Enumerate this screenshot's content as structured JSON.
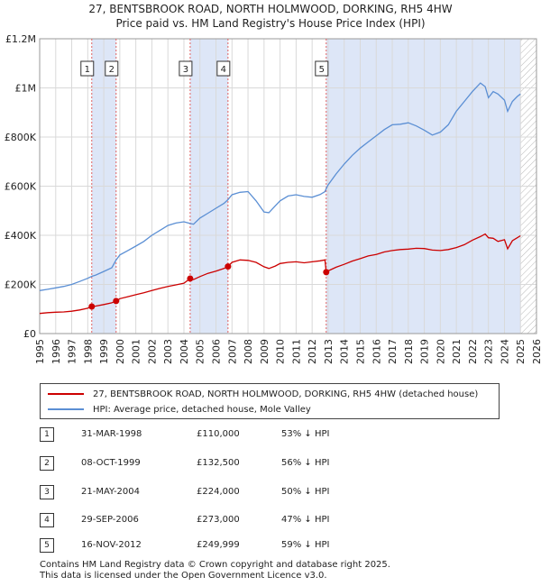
{
  "title_line1": "27, BENTSBROOK ROAD, NORTH HOLMWOOD, DORKING, RH5 4HW",
  "title_line2": "Price paid vs. HM Land Registry's House Price Index (HPI)",
  "colors": {
    "property": "#cc0000",
    "hpi": "#5b8fd4",
    "shade": "#dde6f7",
    "grid": "#d9d9d9"
  },
  "chart_data": {
    "type": "line",
    "xlim": [
      1995,
      2026
    ],
    "ylim": [
      0,
      1200000
    ],
    "yticks": [
      0,
      200000,
      400000,
      600000,
      800000,
      1000000,
      1200000
    ],
    "ytick_labels": [
      "£0",
      "£200K",
      "£400K",
      "£600K",
      "£800K",
      "£1M",
      "£1.2M"
    ],
    "xticks": [
      1995,
      1996,
      1997,
      1998,
      1999,
      2000,
      2001,
      2002,
      2003,
      2004,
      2005,
      2006,
      2007,
      2008,
      2009,
      2010,
      2011,
      2012,
      2013,
      2014,
      2015,
      2016,
      2017,
      2018,
      2019,
      2020,
      2021,
      2022,
      2023,
      2024,
      2025,
      2026
    ],
    "shaded_ranges": [
      [
        1998.25,
        1999.77
      ],
      [
        2004.39,
        2006.75
      ],
      [
        2012.88,
        2025.0
      ]
    ],
    "hatch_from": 2025.0,
    "series": [
      {
        "name": "27, BENTSBROOK ROAD, NORTH HOLMWOOD, DORKING, RH5 4HW (detached house)",
        "color": "#cc0000",
        "x": [
          1995,
          1995.5,
          1996,
          1996.5,
          1997,
          1997.5,
          1998,
          1998.25,
          1998.5,
          1999,
          1999.5,
          1999.77,
          2000,
          2000.5,
          2001,
          2001.5,
          2002,
          2002.5,
          2003,
          2003.5,
          2004,
          2004.39,
          2004.6,
          2005,
          2005.5,
          2006,
          2006.5,
          2006.75,
          2007,
          2007.5,
          2008,
          2008.5,
          2009,
          2009.3,
          2009.7,
          2010,
          2010.5,
          2011,
          2011.5,
          2012,
          2012.5,
          2012.8,
          2012.88,
          2013,
          2013.5,
          2014,
          2014.5,
          2015,
          2015.5,
          2016,
          2016.5,
          2017,
          2017.5,
          2018,
          2018.5,
          2019,
          2019.5,
          2020,
          2020.5,
          2021,
          2021.5,
          2022,
          2022.5,
          2022.8,
          2023,
          2023.3,
          2023.6,
          2024,
          2024.2,
          2024.5,
          2024.8,
          2025
        ],
        "values": [
          82000,
          85000,
          87000,
          88000,
          91000,
          96000,
          103000,
          110000,
          112000,
          118000,
          125000,
          132500,
          142000,
          150000,
          158000,
          166000,
          175000,
          184000,
          192000,
          198000,
          205000,
          224000,
          220000,
          232000,
          245000,
          254000,
          265000,
          273000,
          290000,
          300000,
          298000,
          290000,
          272000,
          265000,
          275000,
          285000,
          290000,
          292000,
          288000,
          292000,
          296000,
          300000,
          249999,
          255000,
          270000,
          282000,
          295000,
          305000,
          316000,
          322000,
          332000,
          338000,
          342000,
          344000,
          347000,
          346000,
          340000,
          338000,
          342000,
          350000,
          362000,
          380000,
          395000,
          405000,
          390000,
          388000,
          375000,
          382000,
          345000,
          378000,
          390000,
          398000
        ]
      },
      {
        "name": "HPI: Average price, detached house, Mole Valley",
        "color": "#5b8fd4",
        "x": [
          1995,
          1995.5,
          1996,
          1996.5,
          1997,
          1997.5,
          1998,
          1998.25,
          1998.5,
          1999,
          1999.5,
          1999.77,
          2000,
          2000.5,
          2001,
          2001.5,
          2002,
          2002.5,
          2003,
          2003.5,
          2004,
          2004.39,
          2004.6,
          2005,
          2005.5,
          2006,
          2006.5,
          2006.75,
          2007,
          2007.5,
          2008,
          2008.5,
          2009,
          2009.3,
          2009.7,
          2010,
          2010.5,
          2011,
          2011.5,
          2012,
          2012.5,
          2012.8,
          2012.88,
          2013,
          2013.5,
          2014,
          2014.5,
          2015,
          2015.5,
          2016,
          2016.5,
          2017,
          2017.5,
          2018,
          2018.5,
          2019,
          2019.5,
          2020,
          2020.5,
          2021,
          2021.5,
          2022,
          2022.5,
          2022.8,
          2023,
          2023.3,
          2023.6,
          2024,
          2024.2,
          2024.5,
          2024.8,
          2025
        ],
        "values": [
          175000,
          180000,
          186000,
          192000,
          200000,
          212000,
          225000,
          233000,
          238000,
          253000,
          268000,
          300000,
          320000,
          338000,
          356000,
          375000,
          400000,
          420000,
          440000,
          450000,
          455000,
          448000,
          445000,
          470000,
          490000,
          510000,
          530000,
          545000,
          565000,
          575000,
          578000,
          540000,
          495000,
          492000,
          520000,
          540000,
          560000,
          565000,
          558000,
          555000,
          566000,
          578000,
          590000,
          605000,
          650000,
          690000,
          725000,
          755000,
          780000,
          805000,
          830000,
          850000,
          852000,
          858000,
          845000,
          828000,
          808000,
          820000,
          850000,
          905000,
          945000,
          985000,
          1020000,
          1005000,
          960000,
          985000,
          975000,
          950000,
          905000,
          945000,
          965000,
          975000
        ]
      }
    ],
    "transactions": [
      {
        "n": "1",
        "x": 1998.25,
        "y": 110000
      },
      {
        "n": "2",
        "x": 1999.77,
        "y": 132500
      },
      {
        "n": "3",
        "x": 2004.39,
        "y": 224000
      },
      {
        "n": "4",
        "x": 2006.75,
        "y": 273000
      },
      {
        "n": "5",
        "x": 2012.88,
        "y": 249999
      }
    ]
  },
  "legend": {
    "property_label": "27, BENTSBROOK ROAD, NORTH HOLMWOOD, DORKING, RH5 4HW (detached house)",
    "hpi_label": "HPI: Average price, detached house, Mole Valley"
  },
  "transactions_table": [
    {
      "n": "1",
      "date": "31-MAR-1998",
      "price": "£110,000",
      "hpi": "53% ↓ HPI"
    },
    {
      "n": "2",
      "date": "08-OCT-1999",
      "price": "£132,500",
      "hpi": "56% ↓ HPI"
    },
    {
      "n": "3",
      "date": "21-MAY-2004",
      "price": "£224,000",
      "hpi": "50% ↓ HPI"
    },
    {
      "n": "4",
      "date": "29-SEP-2006",
      "price": "£273,000",
      "hpi": "47% ↓ HPI"
    },
    {
      "n": "5",
      "date": "16-NOV-2012",
      "price": "£249,999",
      "hpi": "59% ↓ HPI"
    }
  ],
  "footer_line1": "Contains HM Land Registry data © Crown copyright and database right 2025.",
  "footer_line2": "This data is licensed under the Open Government Licence v3.0."
}
